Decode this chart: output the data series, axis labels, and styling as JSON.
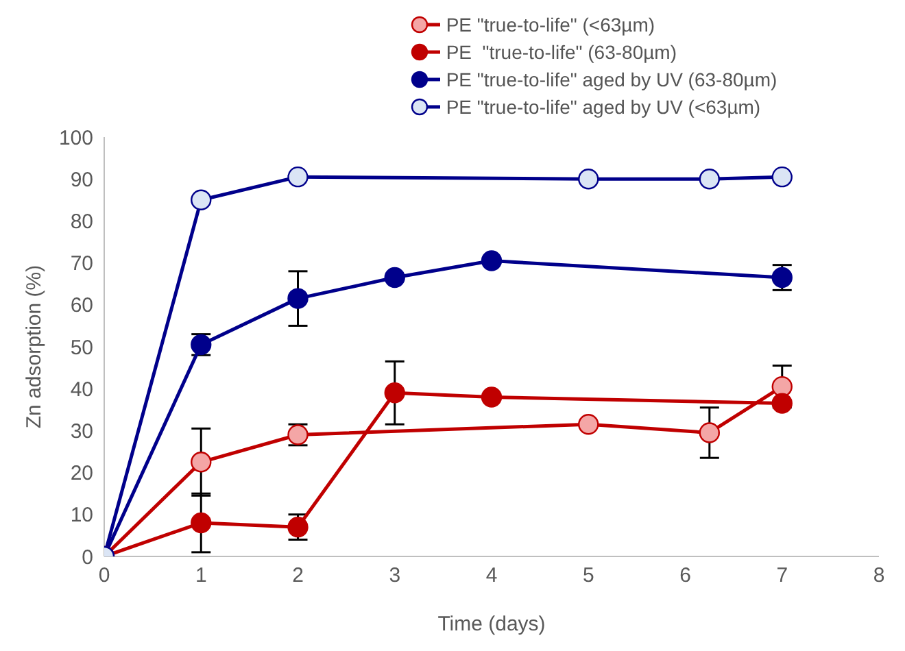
{
  "chart_data": {
    "type": "line",
    "xlabel": "Time (days)",
    "ylabel": "Zn adsorption (%)",
    "xlim": [
      0,
      8
    ],
    "xticks": [
      0,
      1,
      2,
      3,
      4,
      5,
      6,
      7,
      8
    ],
    "ylim": [
      0,
      100
    ],
    "yticks": [
      0,
      10,
      20,
      30,
      40,
      50,
      60,
      70,
      80,
      90,
      100
    ],
    "grid": false,
    "legend": "top",
    "marker": "circle",
    "line_style": "solid",
    "series": [
      {
        "name": "PE \"true-to-life\" (<63µm)",
        "color": "#c00000",
        "colors": [
          "#f4a6a6",
          "#f4a6a6",
          "#f4a6a6",
          "#f4a6a6",
          "#f4a6a6",
          "#f4a6a6"
        ],
        "x": [
          0,
          1,
          2,
          5,
          6.25,
          7
        ],
        "values": [
          0,
          22.5,
          29,
          31.5,
          29.5,
          40.5
        ],
        "errors": [
          null,
          8,
          2.5,
          null,
          6,
          5
        ]
      },
      {
        "name": "PE  \"true-to-life\" (63-80µm)",
        "color": "#c00000",
        "colors": [
          "#c00000",
          "#c00000",
          "#c00000",
          "#c00000",
          "#c00000",
          "#c00000"
        ],
        "x": [
          0,
          1,
          2,
          3,
          4,
          7
        ],
        "values": [
          0,
          8,
          7,
          39,
          38,
          36.5
        ],
        "errors": [
          null,
          7,
          3,
          7.5,
          null,
          null
        ]
      },
      {
        "name": "PE \"true-to-life\" aged by UV (63-80µm)",
        "color": "#00008b",
        "colors": [
          "#00008b",
          "#00008b",
          "#00008b",
          "#00008b",
          "#00008b",
          "#00008b"
        ],
        "x": [
          0,
          1,
          2,
          3,
          4,
          7
        ],
        "values": [
          0,
          50.5,
          61.5,
          66.5,
          70.5,
          66.5
        ],
        "errors": [
          null,
          2.5,
          6.5,
          null,
          null,
          3
        ]
      },
      {
        "name": "PE \"true-to-life\" aged by UV (<63µm)",
        "color": "#00008b",
        "colors": [
          "#dbe5f5",
          "#dbe5f5",
          "#dbe5f5",
          "#dbe5f5",
          "#dbe5f5",
          "#dbe5f5"
        ],
        "x": [
          0,
          1,
          2,
          5,
          6.25,
          7
        ],
        "values": [
          0,
          85,
          90.5,
          90,
          90,
          90.5
        ]
      }
    ]
  }
}
